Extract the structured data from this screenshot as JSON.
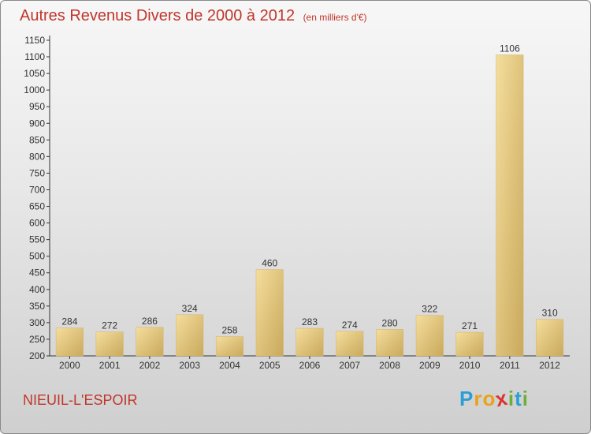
{
  "chart_data": {
    "type": "bar",
    "title": "Autres Revenus Divers de 2000 à 2012",
    "subtitle": "(en milliers d'€)",
    "categories": [
      "2000",
      "2001",
      "2002",
      "2003",
      "2004",
      "2005",
      "2006",
      "2007",
      "2008",
      "2009",
      "2010",
      "2011",
      "2012"
    ],
    "values": [
      284,
      272,
      286,
      324,
      258,
      460,
      283,
      274,
      280,
      322,
      271,
      1106,
      310
    ],
    "ylim": [
      200,
      1150
    ],
    "yticks": [
      200,
      250,
      300,
      350,
      400,
      450,
      500,
      550,
      600,
      650,
      700,
      750,
      800,
      850,
      900,
      950,
      1000,
      1050,
      1100,
      1150
    ],
    "grid": false,
    "bar_color": "#e0c47e",
    "bar_highlight_color": "#f4dd9c",
    "bar_shadow_color": "#c9a95c"
  },
  "footer": {
    "place": "NIEUIL-L'ESPOIR",
    "logo_letters": [
      {
        "ch": "P",
        "color": "#2a9fd6"
      },
      {
        "ch": "r",
        "color": "#e8a21b"
      },
      {
        "ch": "o",
        "color": "#e8a21b"
      },
      {
        "ch": "x",
        "color": "#d9342b"
      },
      {
        "ch": "i",
        "color": "#6cae3a"
      },
      {
        "ch": "t",
        "color": "#2a9fd6"
      },
      {
        "ch": "i",
        "color": "#6cae3a"
      }
    ]
  },
  "colors": {
    "title": "#c0362c",
    "axis": "#333333"
  }
}
